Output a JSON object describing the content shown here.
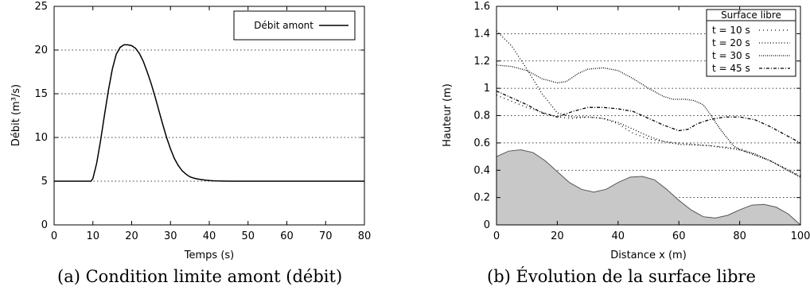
{
  "chart_data": [
    {
      "type": "line",
      "caption": "(a) Condition limite amont (débit)",
      "xlabel": "Temps (s)",
      "ylabel": "Débit (m³/s)",
      "xlim": [
        0,
        80
      ],
      "ylim": [
        0,
        25
      ],
      "xticks": [
        0,
        10,
        20,
        30,
        40,
        50,
        60,
        70,
        80
      ],
      "yticks": [
        0,
        5,
        10,
        15,
        20,
        25
      ],
      "grid": "horizontal dotted",
      "legend_placement": "top-right",
      "series": [
        {
          "name": "Débit amont",
          "style": "solid",
          "x": [
            0,
            9.5,
            10,
            11,
            12,
            13,
            14,
            15,
            16,
            17,
            18,
            19,
            20,
            21,
            22,
            23,
            24,
            25,
            26,
            27,
            28,
            29,
            30,
            31,
            32,
            33,
            34,
            35,
            36,
            37,
            38,
            39,
            40,
            41,
            42,
            44,
            46,
            50,
            60,
            70,
            80
          ],
          "y": [
            5,
            5,
            5.3,
            7.1,
            9.7,
            12.6,
            15.4,
            17.8,
            19.5,
            20.3,
            20.6,
            20.6,
            20.5,
            20.2,
            19.6,
            18.7,
            17.5,
            16.2,
            14.7,
            13.1,
            11.5,
            10.0,
            8.7,
            7.6,
            6.8,
            6.2,
            5.8,
            5.5,
            5.35,
            5.25,
            5.18,
            5.12,
            5.08,
            5.05,
            5.03,
            5.01,
            5.0,
            5,
            5,
            5,
            5
          ]
        }
      ]
    },
    {
      "type": "line",
      "caption": "(b) Évolution de la surface libre",
      "xlabel": "Distance x (m)",
      "ylabel": "Hauteur (m)",
      "xlim": [
        0,
        100
      ],
      "ylim": [
        0,
        1.6
      ],
      "xticks": [
        0,
        20,
        40,
        60,
        80,
        100
      ],
      "yticks": [
        0,
        0.2,
        0.4,
        0.6,
        0.8,
        1,
        1.2,
        1.4,
        1.6
      ],
      "grid": "horizontal dotted",
      "legend_title": "Surface libre",
      "legend_placement": "top-right",
      "bed": {
        "color": "#c8c8c8",
        "x": [
          0,
          4,
          8,
          12,
          16,
          20,
          24,
          28,
          32,
          36,
          40,
          44,
          48,
          52,
          56,
          60,
          64,
          68,
          72,
          76,
          80,
          84,
          88,
          92,
          96,
          100
        ],
        "y": [
          0.5,
          0.54,
          0.55,
          0.53,
          0.47,
          0.39,
          0.31,
          0.26,
          0.24,
          0.26,
          0.31,
          0.35,
          0.355,
          0.33,
          0.26,
          0.18,
          0.11,
          0.06,
          0.05,
          0.07,
          0.11,
          0.145,
          0.15,
          0.13,
          0.08,
          0.0
        ]
      },
      "series": [
        {
          "name": "t = 10 s",
          "style": "sparse-dotted",
          "x": [
            0,
            10,
            20,
            25,
            30,
            35,
            40,
            45,
            50,
            55,
            60,
            70,
            80,
            90,
            100
          ],
          "y": [
            0.95,
            0.86,
            0.79,
            0.78,
            0.79,
            0.78,
            0.74,
            0.67,
            0.63,
            0.61,
            0.6,
            0.58,
            0.56,
            0.47,
            0.36
          ]
        },
        {
          "name": "t = 20 s",
          "style": "dotted",
          "x": [
            0,
            5,
            10,
            15,
            20,
            25,
            30,
            35,
            40,
            45,
            50,
            55,
            60,
            70,
            80,
            90,
            100
          ],
          "y": [
            1.42,
            1.31,
            1.14,
            0.96,
            0.82,
            0.79,
            0.79,
            0.78,
            0.75,
            0.7,
            0.65,
            0.61,
            0.59,
            0.58,
            0.55,
            0.47,
            0.35
          ]
        },
        {
          "name": "t = 30 s",
          "style": "dense-dotted",
          "x": [
            0,
            5,
            10,
            15,
            20,
            23,
            27,
            30,
            35,
            40,
            45,
            50,
            55,
            58,
            62,
            65,
            68,
            70,
            73,
            75,
            78,
            80,
            85,
            90,
            95,
            100
          ],
          "y": [
            1.17,
            1.16,
            1.13,
            1.07,
            1.04,
            1.05,
            1.11,
            1.14,
            1.15,
            1.13,
            1.07,
            1.0,
            0.94,
            0.92,
            0.92,
            0.91,
            0.88,
            0.82,
            0.72,
            0.66,
            0.58,
            0.55,
            0.52,
            0.47,
            0.41,
            0.35
          ]
        },
        {
          "name": "t = 45 s",
          "style": "dash-dot",
          "x": [
            0,
            5,
            10,
            15,
            20,
            25,
            30,
            35,
            40,
            45,
            50,
            55,
            60,
            63,
            66,
            70,
            75,
            80,
            85,
            90,
            95,
            100
          ],
          "y": [
            0.98,
            0.93,
            0.88,
            0.82,
            0.79,
            0.83,
            0.86,
            0.86,
            0.85,
            0.83,
            0.78,
            0.73,
            0.69,
            0.7,
            0.74,
            0.77,
            0.79,
            0.79,
            0.77,
            0.72,
            0.66,
            0.6
          ]
        }
      ]
    }
  ]
}
